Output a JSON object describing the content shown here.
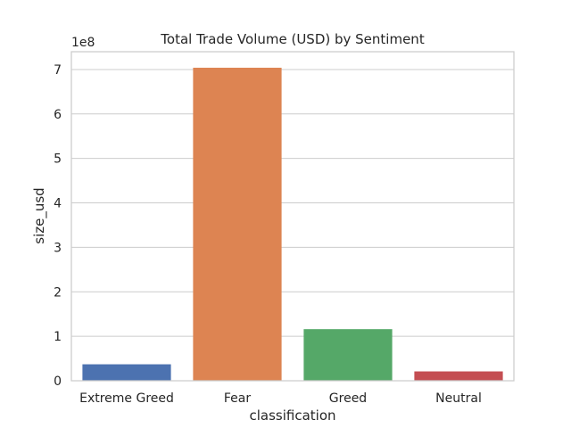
{
  "chart_data": {
    "type": "bar",
    "title": "Total Trade Volume (USD) by Sentiment",
    "xlabel": "classification",
    "ylabel": "size_usd",
    "scale_label": "1e8",
    "categories": [
      "Extreme Greed",
      "Fear",
      "Greed",
      "Neutral"
    ],
    "values": [
      37000000,
      704000000,
      116000000,
      21000000
    ],
    "ylim": [
      0,
      740000000
    ],
    "yticks": [
      0,
      100000000,
      200000000,
      300000000,
      400000000,
      500000000,
      600000000,
      700000000
    ],
    "ytick_labels": [
      "0",
      "1",
      "2",
      "3",
      "4",
      "5",
      "6",
      "7"
    ],
    "colors": [
      "#4c72b0",
      "#dd8452",
      "#55a868",
      "#c44e52"
    ],
    "grid": true
  }
}
